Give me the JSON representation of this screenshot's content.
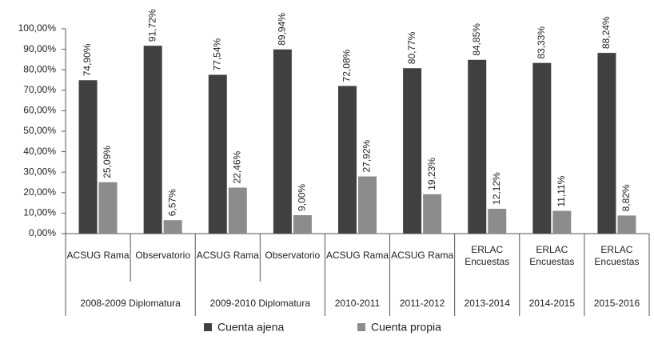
{
  "chart_data": {
    "type": "bar",
    "categories": [
      [
        "ACSUG Rama"
      ],
      [
        "Observatorio"
      ],
      [
        "ACSUG Rama"
      ],
      [
        "Observatorio"
      ],
      [
        "ACSUG Rama"
      ],
      [
        "ACSUG Rama"
      ],
      [
        "ERLAC",
        "Encuestas"
      ],
      [
        "ERLAC",
        "Encuestas"
      ],
      [
        "ERLAC",
        "Encuestas"
      ]
    ],
    "groups": [
      {
        "label": "2008-2009 Diplomatura",
        "span": 2
      },
      {
        "label": "2009-2010 Diplomatura",
        "span": 2
      },
      {
        "label": "2010-2011",
        "span": 1
      },
      {
        "label": "2011-2012",
        "span": 1
      },
      {
        "label": "2013-2014",
        "span": 1
      },
      {
        "label": "2014-2015",
        "span": 1
      },
      {
        "label": "2015-2016",
        "span": 1
      }
    ],
    "series": [
      {
        "name": "Cuenta ajena",
        "color": "#404040",
        "values": [
          74.9,
          91.72,
          77.54,
          89.94,
          72.08,
          80.77,
          84.85,
          83.33,
          88.24
        ],
        "value_labels": [
          "74,90%",
          "91,72%",
          "77,54%",
          "89,94%",
          "72,08%",
          "80,77%",
          "84,85%",
          "83,33%",
          "88,24%"
        ]
      },
      {
        "name": "Cuenta propia",
        "color": "#8c8c8c",
        "values": [
          25.09,
          6.57,
          22.46,
          9.0,
          27.92,
          19.23,
          12.12,
          11.11,
          8.82
        ],
        "value_labels": [
          "25,09%",
          "6,57%",
          "22,46%",
          "9,00%",
          "27,92%",
          "19,23%",
          "12,12%",
          "11,11%",
          "8,82%"
        ]
      }
    ],
    "ylim": [
      0,
      100
    ],
    "yticks": [
      {
        "value": 0,
        "label": "0,00%"
      },
      {
        "value": 10,
        "label": "10,00%"
      },
      {
        "value": 20,
        "label": "20,00%"
      },
      {
        "value": 30,
        "label": "30,00%"
      },
      {
        "value": 40,
        "label": "40,00%"
      },
      {
        "value": 50,
        "label": "50,00%"
      },
      {
        "value": 60,
        "label": "60,00%"
      },
      {
        "value": 70,
        "label": "70,00%"
      },
      {
        "value": 80,
        "label": "80,00%"
      },
      {
        "value": 90,
        "label": "90,00%"
      },
      {
        "value": 100,
        "label": "100,00%"
      }
    ],
    "grid": false,
    "legend": "bottom"
  }
}
